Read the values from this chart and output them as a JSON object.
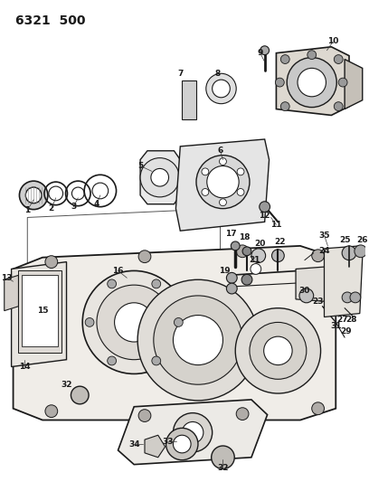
{
  "title": "6321  500",
  "bg_color": "#ffffff",
  "line_color": "#1a1a1a",
  "title_fontsize": 10,
  "label_fontsize": 6.5,
  "fig_width": 4.08,
  "fig_height": 5.33,
  "dpi": 100
}
